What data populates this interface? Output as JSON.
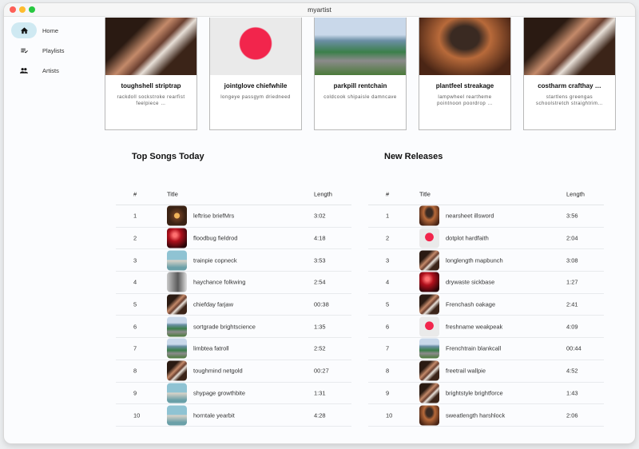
{
  "window": {
    "title": "myartist"
  },
  "sidebar": {
    "items": [
      {
        "label": "Home",
        "icon": "home-icon",
        "active": true
      },
      {
        "label": "Playlists",
        "icon": "playlist-check-icon"
      },
      {
        "label": "Artists",
        "icon": "people-icon"
      }
    ]
  },
  "cards": [
    {
      "title": "toughshell striptrap",
      "subtitle": "rackdoll sockstroke rearfist feelpiece …",
      "image": "piano"
    },
    {
      "title": "jointglove chiefwhile",
      "subtitle": "longeye passgym driedneed",
      "image": "heart"
    },
    {
      "title": "parkpill rentchain",
      "subtitle": "coldcook shipaisle damncave",
      "image": "city"
    },
    {
      "title": "plantfeel streakage",
      "subtitle": "lampwheel reartheme pointnoon poordrop …",
      "image": "yoga"
    },
    {
      "title": "costharm crafthay …",
      "subtitle": "startlens greengas schoolstretch straightrim…",
      "image": "piano"
    }
  ],
  "top_songs": {
    "heading": "Top Songs Today",
    "columns": [
      "#",
      "Title",
      "Length"
    ],
    "rows": [
      {
        "n": "1",
        "title": "leftrise briefMrs",
        "length": "3:02",
        "image": "coffee"
      },
      {
        "n": "2",
        "title": "floodbug fieldrod",
        "length": "4:18",
        "image": "red"
      },
      {
        "n": "3",
        "title": "trainpie copneck",
        "length": "3:53",
        "image": "runner"
      },
      {
        "n": "4",
        "title": "haychance folkwing",
        "length": "2:54",
        "image": "grey"
      },
      {
        "n": "5",
        "title": "chiefday farjaw",
        "length": "00:38",
        "image": "piano"
      },
      {
        "n": "6",
        "title": "sortgrade brightscience",
        "length": "1:35",
        "image": "city"
      },
      {
        "n": "7",
        "title": "limbtea fatroll",
        "length": "2:52",
        "image": "city"
      },
      {
        "n": "8",
        "title": "toughmind netgold",
        "length": "00:27",
        "image": "piano"
      },
      {
        "n": "9",
        "title": "shypage growthbite",
        "length": "1:31",
        "image": "runner"
      },
      {
        "n": "10",
        "title": "horntale yearbit",
        "length": "4:28",
        "image": "runner"
      }
    ]
  },
  "new_releases": {
    "heading": "New Releases",
    "columns": [
      "#",
      "Title",
      "Length"
    ],
    "rows": [
      {
        "n": "1",
        "title": "nearsheet illsword",
        "length": "3:56",
        "image": "yoga"
      },
      {
        "n": "2",
        "title": "dotplot hardfaith",
        "length": "2:04",
        "image": "heart"
      },
      {
        "n": "3",
        "title": "longlength mapbunch",
        "length": "3:08",
        "image": "piano"
      },
      {
        "n": "4",
        "title": "drywaste sickbase",
        "length": "1:27",
        "image": "red"
      },
      {
        "n": "5",
        "title": "Frenchash oakage",
        "length": "2:41",
        "image": "piano"
      },
      {
        "n": "6",
        "title": "freshname weakpeak",
        "length": "4:09",
        "image": "heart"
      },
      {
        "n": "7",
        "title": "Frenchtrain blankcall",
        "length": "00:44",
        "image": "city"
      },
      {
        "n": "8",
        "title": "freetrail wallpie",
        "length": "4:52",
        "image": "piano"
      },
      {
        "n": "9",
        "title": "brightstyle brightforce",
        "length": "1:43",
        "image": "piano"
      },
      {
        "n": "10",
        "title": "sweatlength harshlock",
        "length": "2:06",
        "image": "yoga"
      }
    ]
  }
}
